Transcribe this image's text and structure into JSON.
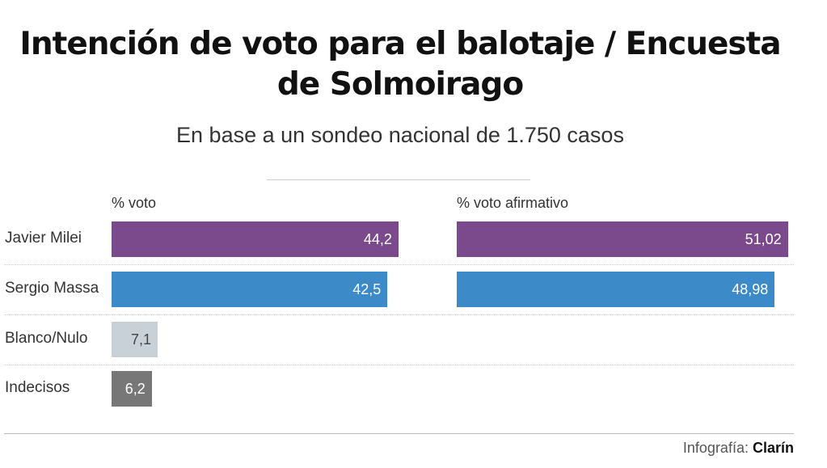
{
  "chart_data": {
    "type": "bar",
    "title": "Intención de voto para el balotaje / Encuesta de Solmoirago",
    "subtitle": "En base a un sondeo nacional de 1.750 casos",
    "categories": [
      "Javier Milei",
      "Sergio Massa",
      "Blanco/Nulo",
      "Indecisos"
    ],
    "series": [
      {
        "name": "% voto",
        "values": [
          44.2,
          42.5,
          7.1,
          6.2
        ],
        "labels": [
          "44,2",
          "42,5",
          "7,1",
          "6,2"
        ],
        "colors": [
          "#7b4a8c",
          "#3d8ac8",
          "#c8d1d8",
          "#777777"
        ],
        "label_colors": [
          "#ffffff",
          "#ffffff",
          "#444444",
          "#ffffff"
        ]
      },
      {
        "name": "% voto afirmativo",
        "values": [
          51.02,
          48.98,
          null,
          null
        ],
        "labels": [
          "51,02",
          "48,98",
          "",
          ""
        ],
        "colors": [
          "#7b4a8c",
          "#3d8ac8"
        ],
        "label_colors": [
          "#ffffff",
          "#ffffff"
        ]
      }
    ],
    "orientation": "horizontal",
    "grid": false,
    "legend": "none"
  },
  "credit": {
    "prefix": "Infografía:",
    "brand": "Clarín"
  }
}
